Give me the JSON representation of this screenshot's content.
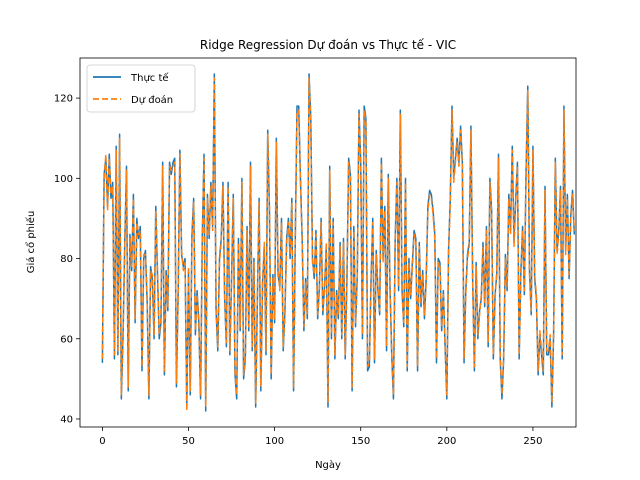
{
  "chart_data": {
    "type": "line",
    "title": "Ridge Regression Dự đoán vs Thực tế - VIC",
    "xlabel": "Ngày",
    "ylabel": "Giá cổ phiếu",
    "xlim": [
      -13,
      275
    ],
    "ylim": [
      38,
      130
    ],
    "xticks": [
      0,
      50,
      100,
      150,
      200,
      250
    ],
    "yticks": [
      40,
      60,
      80,
      100,
      120
    ],
    "legend_position": "upper-left",
    "grid": false,
    "series": [
      {
        "name": "Thực tế",
        "color": "#1f77b4",
        "dash": "solid",
        "values": [
          54,
          101,
          105,
          93,
          106,
          95,
          99,
          55,
          108,
          56,
          111,
          45,
          61,
          84,
          103,
          47,
          86,
          77,
          96,
          64,
          90,
          85,
          88,
          52,
          80,
          82,
          69,
          45,
          78,
          75,
          60,
          93,
          76,
          60,
          64,
          104,
          51,
          77,
          67,
          104,
          101,
          104,
          105,
          48,
          72,
          107,
          81,
          78,
          80,
          43,
          77,
          46,
          86,
          95,
          61,
          72,
          64,
          45,
          85,
          106,
          42,
          96,
          85,
          99,
          88,
          126,
          67,
          57,
          80,
          85,
          99,
          70,
          58,
          99,
          56,
          75,
          96,
          51,
          45,
          85,
          62,
          100,
          50,
          55,
          88,
          62,
          104,
          57,
          80,
          43,
          70,
          95,
          47,
          74,
          83,
          56,
          112,
          92,
          50,
          76,
          64,
          110,
          76,
          73,
          90,
          57,
          67,
          85,
          90,
          80,
          95,
          47,
          85,
          118,
          118,
          100,
          85,
          62,
          75,
          65,
          126,
          115,
          80,
          75,
          87,
          65,
          73,
          90,
          66,
          73,
          83,
          43,
          103,
          60,
          90,
          55,
          72,
          65,
          84,
          60,
          85,
          55,
          75,
          105,
          101,
          47,
          88,
          63,
          76,
          117,
          104,
          60,
          118,
          115,
          52,
          53,
          75,
          90,
          54,
          82,
          72,
          66,
          105,
          80,
          93,
          57,
          101,
          73,
          56,
          45,
          85,
          100,
          72,
          117,
          72,
          63,
          100,
          52,
          80,
          70,
          79,
          87,
          85,
          52,
          84,
          68,
          77,
          65,
          75,
          93,
          97,
          96,
          92,
          86,
          54,
          80,
          79,
          62,
          72,
          58,
          45,
          82,
          95,
          118,
          100,
          105,
          110,
          104,
          113,
          104,
          54,
          72,
          81,
          84,
          113,
          75,
          52,
          79,
          60,
          67,
          70,
          84,
          68,
          88,
          58,
          100,
          92,
          55,
          71,
          76,
          106,
          55,
          45,
          55,
          81,
          72,
          96,
          87,
          108,
          84,
          95,
          104,
          55,
          77,
          88,
          71,
          102,
          123,
          77,
          66,
          108,
          75,
          70,
          51,
          61,
          56,
          51,
          98,
          56,
          56,
          60,
          43,
          61,
          105,
          82,
          87,
          98,
          55,
          118,
          82,
          96,
          75,
          91,
          97,
          86
        ]
      },
      {
        "name": "Dự đoán",
        "color": "#ff7f0e",
        "dash": "6,3",
        "values": [
          55,
          100,
          106,
          92,
          105,
          96,
          98,
          56,
          107,
          57,
          110,
          46,
          62,
          83,
          102,
          48,
          85,
          78,
          95,
          65,
          89,
          86,
          87,
          53,
          81,
          81,
          70,
          46,
          77,
          76,
          61,
          92,
          77,
          61,
          65,
          103,
          52,
          76,
          68,
          103,
          102,
          103,
          104,
          49,
          71,
          106,
          82,
          77,
          79,
          42,
          78,
          47,
          85,
          94,
          62,
          71,
          65,
          46,
          84,
          105,
          43,
          95,
          86,
          98,
          87,
          125,
          68,
          58,
          79,
          84,
          98,
          71,
          59,
          98,
          57,
          74,
          95,
          52,
          46,
          84,
          63,
          99,
          51,
          56,
          87,
          63,
          103,
          58,
          79,
          44,
          71,
          94,
          48,
          73,
          84,
          57,
          111,
          93,
          51,
          75,
          65,
          109,
          77,
          72,
          89,
          58,
          66,
          84,
          89,
          81,
          94,
          48,
          84,
          117,
          117,
          99,
          84,
          63,
          74,
          66,
          125,
          114,
          79,
          76,
          86,
          66,
          72,
          89,
          67,
          72,
          84,
          44,
          102,
          61,
          89,
          56,
          71,
          66,
          83,
          61,
          84,
          56,
          74,
          104,
          100,
          48,
          87,
          64,
          75,
          116,
          103,
          61,
          117,
          114,
          53,
          54,
          74,
          89,
          55,
          81,
          73,
          67,
          104,
          79,
          92,
          58,
          100,
          72,
          57,
          46,
          84,
          99,
          73,
          116,
          71,
          64,
          99,
          53,
          79,
          71,
          78,
          86,
          84,
          53,
          83,
          69,
          76,
          66,
          74,
          92,
          96,
          95,
          91,
          85,
          55,
          79,
          78,
          63,
          71,
          59,
          46,
          81,
          94,
          117,
          99,
          104,
          109,
          103,
          112,
          103,
          55,
          71,
          80,
          83,
          112,
          74,
          53,
          78,
          61,
          66,
          71,
          83,
          69,
          87,
          59,
          99,
          91,
          56,
          70,
          77,
          105,
          56,
          46,
          56,
          80,
          73,
          95,
          86,
          107,
          83,
          94,
          103,
          56,
          76,
          87,
          72,
          101,
          122,
          76,
          67,
          107,
          76,
          71,
          52,
          62,
          57,
          52,
          97,
          57,
          57,
          61,
          44,
          62,
          104,
          81,
          86,
          97,
          56,
          117,
          81,
          95,
          76,
          90,
          96,
          87
        ]
      }
    ]
  }
}
